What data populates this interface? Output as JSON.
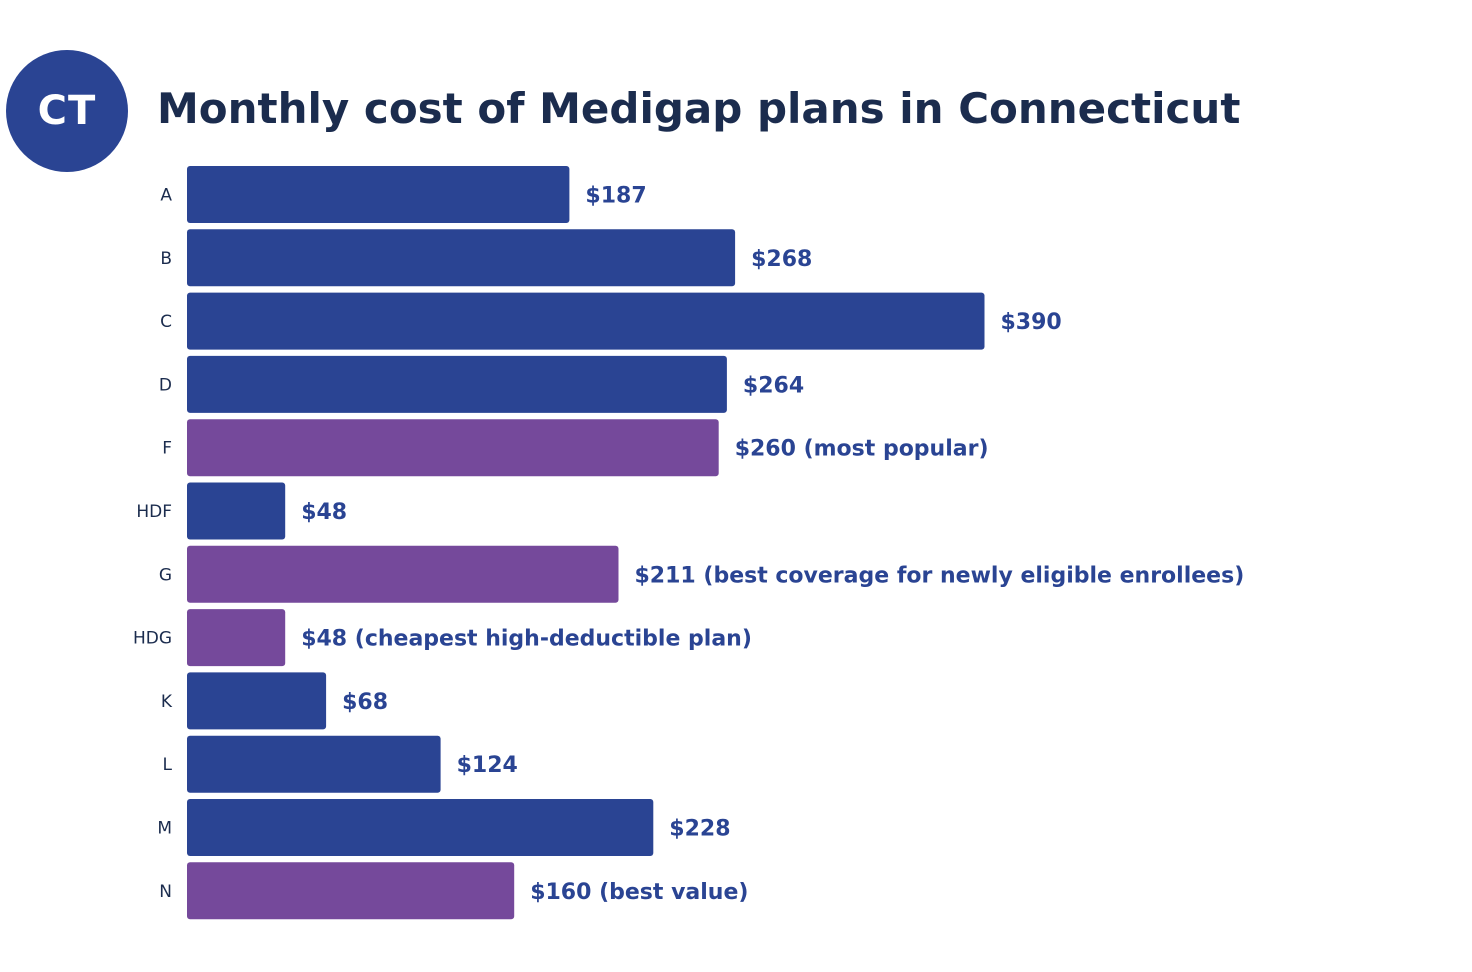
{
  "badge": {
    "text": "CT"
  },
  "chart_data": {
    "type": "bar",
    "orientation": "horizontal",
    "title": "Monthly cost of Medigap plans in Connecticut",
    "xlabel": "",
    "ylabel": "",
    "grid": false,
    "legend": "none",
    "colors": {
      "standard": "#2a4493",
      "highlight": "#75499b",
      "label": "#2a4493",
      "category": "#1b2c4e"
    },
    "categories": [
      "A",
      "B",
      "C",
      "D",
      "F",
      "HDF",
      "G",
      "HDG",
      "K",
      "L",
      "M",
      "N"
    ],
    "values": [
      187,
      268,
      390,
      264,
      260,
      48,
      211,
      48,
      68,
      124,
      228,
      160
    ],
    "labels": [
      "$187",
      "$268",
      "$390",
      "$264",
      "$260 (most popular)",
      "$48",
      "$211 (best coverage for newly eligible enrollees)",
      "$48 (cheapest high-deductible plan)",
      "$68",
      "$124",
      "$228",
      "$160 (best value)"
    ],
    "highlighted": [
      false,
      false,
      false,
      false,
      true,
      false,
      true,
      true,
      false,
      false,
      false,
      true
    ]
  }
}
